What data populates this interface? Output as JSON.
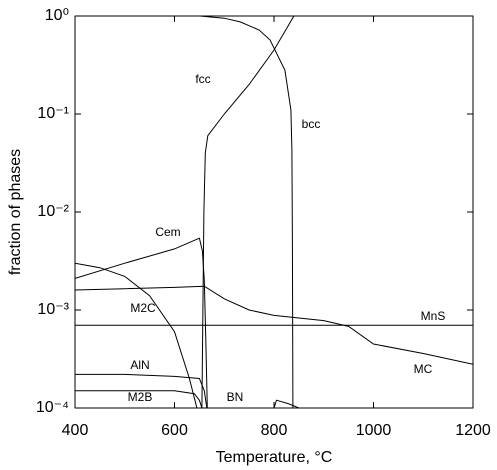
{
  "chart_data": {
    "type": "line",
    "x_label": "Temperature, °C",
    "y_label": "fraction of phases",
    "log_y": true,
    "xlim": [
      400,
      1200
    ],
    "xticks": [
      400,
      600,
      800,
      1000,
      1200
    ],
    "ylim": [
      0.0001,
      1
    ],
    "yticks": [
      {
        "value": 1,
        "label": "10⁰"
      },
      {
        "value": 0.1,
        "label": "10⁻¹"
      },
      {
        "value": 0.01,
        "label": "10⁻²"
      },
      {
        "value": 0.001,
        "label": "10⁻³"
      },
      {
        "value": 0.0001,
        "label": "10⁻⁴"
      }
    ],
    "series": [
      {
        "name": "fcc",
        "color": "#000000",
        "x": [
          655,
          657,
          659,
          662,
          667,
          700,
          750,
          800,
          840
        ],
        "values": [
          0.0001,
          0.001,
          0.01,
          0.04,
          0.06,
          0.1,
          0.2,
          0.45,
          1
        ]
      },
      {
        "name": "bcc",
        "color": "#000000",
        "x": [
          651,
          700,
          732,
          770,
          792,
          822,
          834,
          836,
          837,
          838
        ],
        "values": [
          1,
          0.95,
          0.87,
          0.72,
          0.57,
          0.28,
          0.11,
          0.043,
          0.005,
          0.0001
        ]
      },
      {
        "name": "Cem",
        "color": "#000000",
        "x": [
          400,
          500,
          600,
          650,
          656,
          660,
          663,
          666
        ],
        "values": [
          0.0021,
          0.003,
          0.0042,
          0.0054,
          0.004,
          0.002,
          0.0005,
          0.0001
        ]
      },
      {
        "name": "M2C",
        "color": "#000000",
        "x": [
          400,
          450,
          500,
          550,
          600,
          630,
          645
        ],
        "values": [
          0.003,
          0.0027,
          0.0022,
          0.0014,
          0.0006,
          0.0002,
          0.0001
        ]
      },
      {
        "name": "MC",
        "color": "#000000",
        "x": [
          400,
          500,
          600,
          660,
          700,
          750,
          800,
          900,
          950,
          1000,
          1100,
          1200
        ],
        "values": [
          0.0016,
          0.00165,
          0.0017,
          0.00175,
          0.0013,
          0.001,
          0.00088,
          0.00078,
          0.00068,
          0.00045,
          0.00036,
          0.00028
        ]
      },
      {
        "name": "MnS",
        "color": "#000000",
        "x": [
          400,
          1200
        ],
        "values": [
          0.0007,
          0.0007
        ]
      },
      {
        "name": "AlN",
        "color": "#000000",
        "x": [
          400,
          500,
          600,
          650,
          660,
          665
        ],
        "values": [
          0.00022,
          0.00022,
          0.00021,
          0.0002,
          0.00015,
          0.0001
        ]
      },
      {
        "name": "M2B",
        "color": "#000000",
        "x": [
          400,
          600,
          640,
          650,
          655
        ],
        "values": [
          0.00015,
          0.00015,
          0.00014,
          0.00012,
          0.0001
        ]
      },
      {
        "name": "BN",
        "color": "#000000",
        "x": [
          800,
          805,
          830,
          850
        ],
        "values": [
          0.0001,
          0.00012,
          0.00011,
          0.0001
        ]
      }
    ]
  }
}
